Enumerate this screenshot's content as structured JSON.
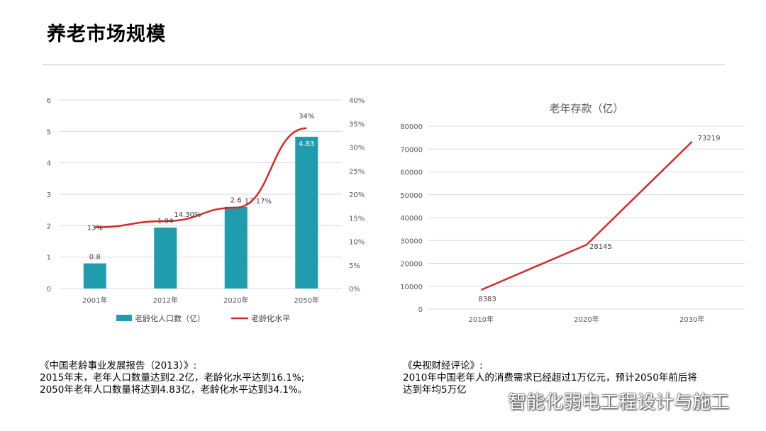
{
  "page": {
    "title": "养老市场规模"
  },
  "chart_data": [
    {
      "type": "bar",
      "categories": [
        "2001年",
        "2012年",
        "2020年",
        "2050年"
      ],
      "series": [
        {
          "name": "老龄化人口数（亿）",
          "type": "bar",
          "axis": "left",
          "values": [
            0.8,
            1.94,
            2.6,
            4.83
          ],
          "labels": [
            "0.8",
            "1.94",
            "2.6",
            "4.83"
          ],
          "color": "#1f9daf"
        },
        {
          "name": "老龄化水平",
          "type": "line",
          "axis": "right",
          "values": [
            13,
            14.3,
            17.17,
            34
          ],
          "labels": [
            "13%",
            "14.30%",
            "17.17%",
            "34%"
          ],
          "color": "#d42a2a"
        }
      ],
      "ylim": [
        0,
        6
      ],
      "yticks": [
        "0",
        "1",
        "2",
        "3",
        "4",
        "5",
        "6"
      ],
      "y2lim": [
        0,
        40
      ],
      "y2ticks": [
        "0%",
        "5%",
        "10%",
        "15%",
        "20%",
        "25%",
        "30%",
        "35%",
        "40%"
      ],
      "grid": true,
      "legend": "bottom"
    },
    {
      "type": "line",
      "title": "老年存款（亿）",
      "categories": [
        "2010年",
        "2020年",
        "2030年"
      ],
      "series": [
        {
          "values": [
            8383,
            28145,
            73219
          ],
          "labels": [
            "8383",
            "28145",
            "73219"
          ],
          "color": "#d42a2a"
        }
      ],
      "ylim": [
        0,
        80000
      ],
      "yticks": [
        "0",
        "10000",
        "20000",
        "30000",
        "40000",
        "50000",
        "60000",
        "70000",
        "80000"
      ],
      "grid": true
    }
  ],
  "notes": {
    "left": [
      "《中国老龄事业发展报告（2013）》:",
      "2015年末，老年人口数量达到2.2亿，老龄化水平达到16.1%;",
      "2050年老年人口数量将达到4.83亿，老龄化水平达到34.1%。"
    ],
    "right": [
      "《央视财经评论》:",
      "2010年中国老年人的消费需求已经超过1万亿元，预计2050年前后将",
      "达到年均5万亿"
    ]
  },
  "watermark": {
    "text": "智能化弱电工程设计与施工"
  }
}
